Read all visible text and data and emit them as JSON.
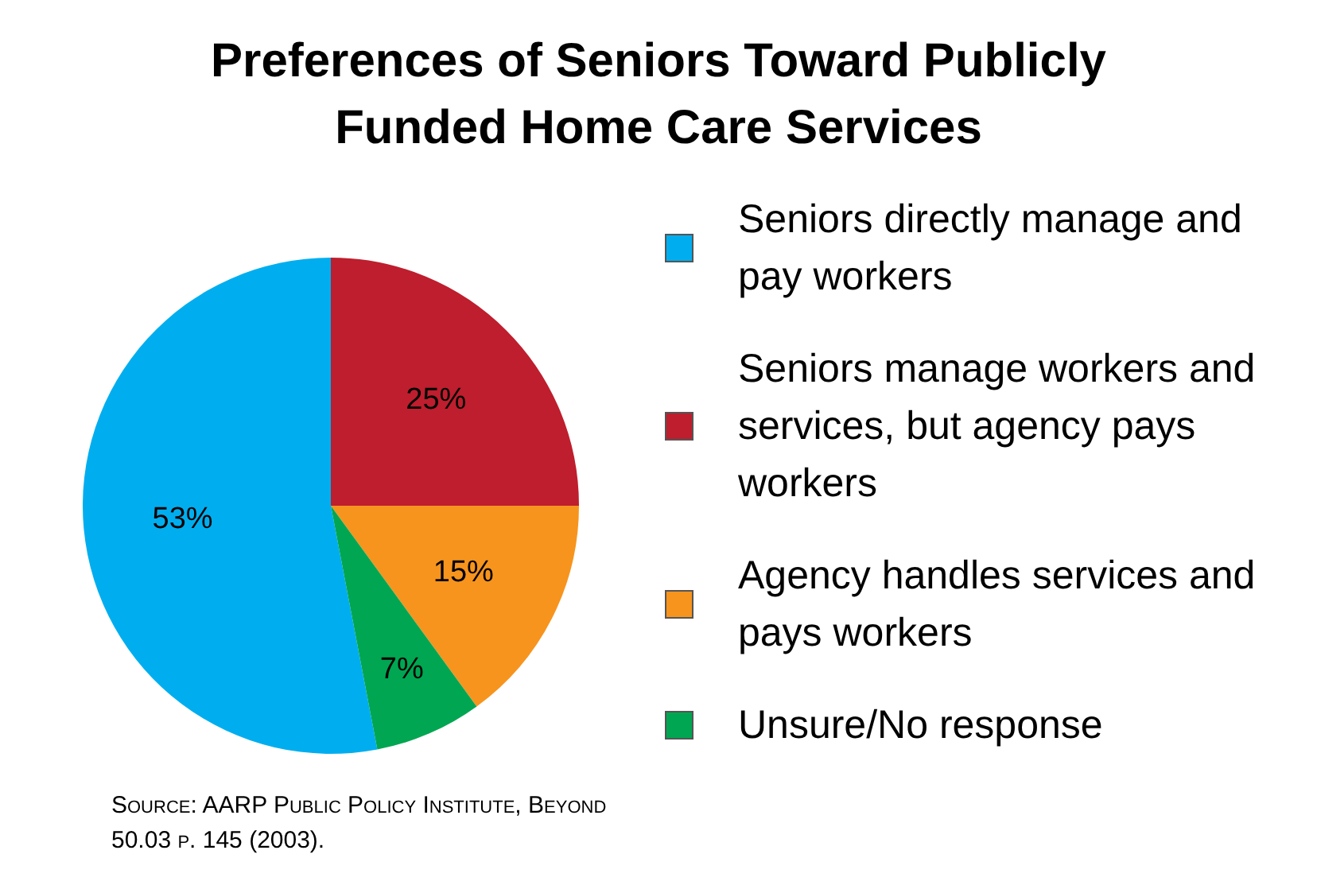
{
  "chart_data": {
    "type": "pie",
    "title": "Preferences of Seniors Toward Publicly Funded Home Care Services",
    "categories": [
      "Seniors directly manage and pay workers",
      "Seniors manage workers and services, but agency pays workers",
      "Agency handles services and pays workers",
      "Unsure/No response"
    ],
    "values": [
      53,
      25,
      15,
      7
    ],
    "value_labels": [
      "53%",
      "25%",
      "15%",
      "7%"
    ],
    "colors": [
      "#00aeef",
      "#be1e2d",
      "#f7941d",
      "#00a651"
    ],
    "legend": "right",
    "annotations": [
      "Source: AARP Public Policy Institute, Beyond 50.03 p. 145 (2003)."
    ]
  }
}
